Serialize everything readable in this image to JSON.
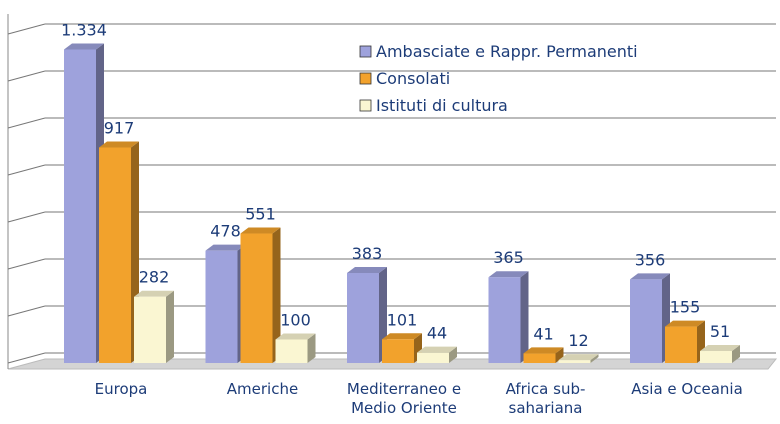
{
  "chart_data": {
    "type": "bar3d",
    "categories": [
      "Europa",
      "Americhe",
      "Mediterraneo e Medio Oriente",
      "Africa sub-sahariana",
      "Asia e Oceania"
    ],
    "series": [
      {
        "name": "Ambasciate e Rappr. Permanenti",
        "color": "#9ea2dc",
        "values": [
          1334,
          478,
          383,
          365,
          356
        ],
        "value_labels": [
          "1.334",
          "478",
          "383",
          "365",
          "356"
        ]
      },
      {
        "name": "Consolati",
        "color": "#f2a22c",
        "values": [
          917,
          551,
          101,
          41,
          155
        ]
      },
      {
        "name": "Istituti di cultura",
        "color": "#faf6d2",
        "values": [
          282,
          100,
          44,
          12,
          51
        ]
      }
    ],
    "ylim": [
      0,
      1400
    ],
    "yticks": [
      0,
      200,
      400,
      600,
      800,
      1000,
      1200,
      1400
    ],
    "grid": true,
    "legend": "top-right"
  }
}
